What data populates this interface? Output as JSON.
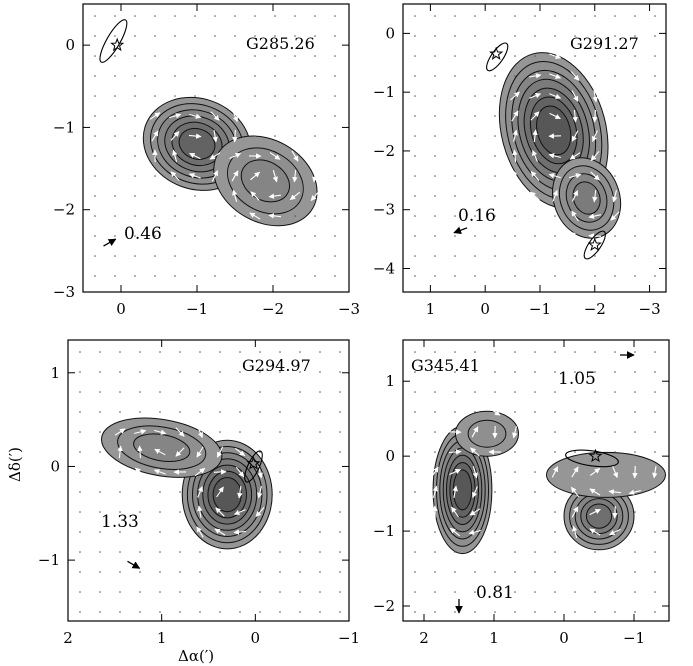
{
  "figure": {
    "xlabel": "Δα(′)",
    "ylabel": "Δδ(′)"
  },
  "chart_data": [
    {
      "type": "contour",
      "title": "G285.26",
      "xlim": [
        0.5,
        -3
      ],
      "ylim": [
        -3,
        0.5
      ],
      "x_ticks": [
        0,
        -1,
        -2,
        -3
      ],
      "x_tick_labels": [
        "0",
        "−1",
        "−2",
        "−3"
      ],
      "y_ticks": [
        0,
        -1,
        -2,
        -3
      ],
      "y_tick_labels": [
        "0",
        "−1",
        "−2",
        "−3"
      ],
      "reference_vector": {
        "label": "0.46",
        "x": 0.15,
        "y": -2.4,
        "angle_deg": 30
      },
      "star": {
        "x": 0.05,
        "y": 0.0
      },
      "beam": {
        "x": 0.1,
        "y": 0.05,
        "rx": 0.32,
        "ry": 0.08,
        "angle_deg": -60
      },
      "blobs": [
        {
          "x": -1.0,
          "y": -1.2,
          "rx": 0.72,
          "ry": 0.55,
          "angle_deg": 20,
          "levels": 6
        },
        {
          "x": -1.9,
          "y": -1.65,
          "rx": 0.72,
          "ry": 0.5,
          "angle_deg": 30,
          "levels": 3
        }
      ]
    },
    {
      "type": "contour",
      "title": "G291.27",
      "xlim": [
        1.5,
        -3.3
      ],
      "ylim": [
        -4.4,
        0.5
      ],
      "x_ticks": [
        1,
        0,
        -1,
        -2,
        -3
      ],
      "x_tick_labels": [
        "1",
        "0",
        "−1",
        "−2",
        "−3"
      ],
      "y_ticks": [
        0,
        -1,
        -2,
        -3,
        -4
      ],
      "y_tick_labels": [
        "0",
        "−1",
        "−2",
        "−3",
        "−4"
      ],
      "reference_vector": {
        "label": "0.16",
        "x": 0.45,
        "y": -3.35,
        "angle_deg": 200
      },
      "star": {
        "x": -0.2,
        "y": -0.35
      },
      "star2": {
        "x": -2.0,
        "y": -3.6
      },
      "beam": {
        "x": -0.22,
        "y": -0.4,
        "rx": 0.3,
        "ry": 0.1,
        "angle_deg": -55
      },
      "beam2": {
        "x": -2.0,
        "y": -3.6,
        "rx": 0.3,
        "ry": 0.1,
        "angle_deg": -55
      },
      "blobs": [
        {
          "x": -1.25,
          "y": -1.65,
          "rx": 0.95,
          "ry": 1.35,
          "angle_deg": -15,
          "levels": 7
        },
        {
          "x": -1.85,
          "y": -2.8,
          "rx": 0.6,
          "ry": 0.7,
          "angle_deg": -20,
          "levels": 4
        }
      ]
    },
    {
      "type": "contour",
      "title": "G294.97",
      "xlim": [
        2,
        -1
      ],
      "ylim": [
        -1.65,
        1.35
      ],
      "x_ticks": [
        2,
        1,
        0,
        -1
      ],
      "x_tick_labels": [
        "2",
        "1",
        "0",
        "−1"
      ],
      "y_ticks": [
        1,
        0,
        -1
      ],
      "y_tick_labels": [
        "1",
        "0",
        "−1"
      ],
      "reference_vector": {
        "label": "1.33",
        "x": 1.3,
        "y": -1.05,
        "angle_deg": -30
      },
      "star": {
        "x": 0.02,
        "y": 0.03
      },
      "beam": {
        "x": 0.02,
        "y": 0.0,
        "rx": 0.18,
        "ry": 0.06,
        "angle_deg": -65
      },
      "blobs": [
        {
          "x": 0.3,
          "y": -0.3,
          "rx": 0.48,
          "ry": 0.58,
          "angle_deg": 0,
          "levels": 7
        },
        {
          "x": 1.0,
          "y": 0.2,
          "rx": 0.65,
          "ry": 0.3,
          "angle_deg": 10,
          "levels": 3
        }
      ]
    },
    {
      "type": "contour",
      "title": "G345.41",
      "xlim": [
        2.3,
        -1.5
      ],
      "ylim": [
        -2.2,
        1.55
      ],
      "x_ticks": [
        2,
        1,
        0,
        -1
      ],
      "x_tick_labels": [
        "2",
        "1",
        "0",
        "−1"
      ],
      "y_ticks": [
        1,
        0,
        -1,
        -2
      ],
      "y_tick_labels": [
        "1",
        "0",
        "−1",
        "−2"
      ],
      "reference_vector": {
        "label": "1.05",
        "x": -0.9,
        "y": 1.35,
        "angle_deg": 0
      },
      "reference_vector2": {
        "label": "0.81",
        "x": 1.5,
        "y": -2.0,
        "angle_deg": -90
      },
      "star": {
        "x": -0.45,
        "y": 0.0
      },
      "beam": {
        "x": -0.4,
        "y": -0.03,
        "rx": 0.38,
        "ry": 0.1,
        "angle_deg": 8
      },
      "blobs": [
        {
          "x": 1.45,
          "y": -0.45,
          "rx": 0.42,
          "ry": 0.85,
          "angle_deg": 0,
          "levels": 7
        },
        {
          "x": 1.1,
          "y": 0.3,
          "rx": 0.45,
          "ry": 0.3,
          "angle_deg": 0,
          "levels": 2
        },
        {
          "x": -0.5,
          "y": -0.8,
          "rx": 0.5,
          "ry": 0.45,
          "angle_deg": 0,
          "levels": 5
        },
        {
          "x": -0.6,
          "y": -0.25,
          "rx": 0.85,
          "ry": 0.3,
          "angle_deg": 0,
          "levels": 1
        }
      ]
    }
  ]
}
